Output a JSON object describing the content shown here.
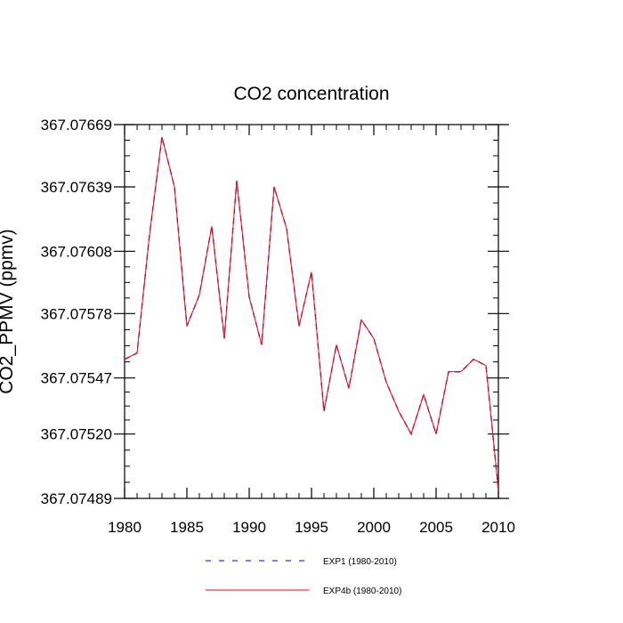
{
  "chart_data": {
    "type": "line",
    "title": "CO2 concentration",
    "xlabel": "",
    "ylabel": "CO2_PPMV (ppmv)",
    "xlim": [
      1980,
      2010
    ],
    "ylim": [
      367.07489,
      367.07669
    ],
    "x_ticks": [
      1980,
      1985,
      1990,
      1995,
      2000,
      2005,
      2010
    ],
    "x_tick_labels": [
      "1980",
      "1985",
      "1990",
      "1995",
      "2000",
      "2005",
      "2010"
    ],
    "y_ticks": [
      367.07489,
      367.0752,
      367.07547,
      367.07578,
      367.07608,
      367.07639,
      367.07669
    ],
    "y_tick_labels": [
      "367.07489",
      "367.07520",
      "367.07547",
      "367.07578",
      "367.07608",
      "367.07639",
      "367.07669"
    ],
    "x": [
      1980,
      1981,
      1982,
      1983,
      1984,
      1985,
      1986,
      1987,
      1988,
      1989,
      1990,
      1991,
      1992,
      1993,
      1994,
      1995,
      1996,
      1997,
      1998,
      1999,
      2000,
      2001,
      2002,
      2003,
      2004,
      2005,
      2006,
      2007,
      2008,
      2009,
      2010
    ],
    "series": [
      {
        "name": "EXP1 (1980-2010)",
        "color": "#0000cc",
        "style": "dashed",
        "values": [
          367.07556,
          367.07559,
          367.07616,
          367.07663,
          367.07639,
          367.07572,
          367.07587,
          367.0762,
          367.07566,
          367.07642,
          367.07586,
          367.07563,
          367.07639,
          367.07619,
          367.07572,
          367.07598,
          367.07531,
          367.07563,
          367.07542,
          367.07575,
          367.07566,
          367.07545,
          367.07531,
          367.0752,
          367.07539,
          367.0752,
          367.0755,
          367.0755,
          367.07556,
          367.07553,
          367.07493
        ]
      },
      {
        "name": "EXP4b (1980-2010)",
        "color": "#ff0000",
        "style": "solid",
        "values": [
          367.07556,
          367.07559,
          367.07616,
          367.07663,
          367.07639,
          367.07572,
          367.07587,
          367.0762,
          367.07566,
          367.07642,
          367.07586,
          367.07563,
          367.07639,
          367.07619,
          367.07572,
          367.07598,
          367.07531,
          367.07563,
          367.07542,
          367.07575,
          367.07566,
          367.07545,
          367.07531,
          367.0752,
          367.07539,
          367.0752,
          367.0755,
          367.0755,
          367.07556,
          367.07553,
          367.07493
        ]
      }
    ],
    "legend_position": "bottom-center",
    "grid": false
  }
}
